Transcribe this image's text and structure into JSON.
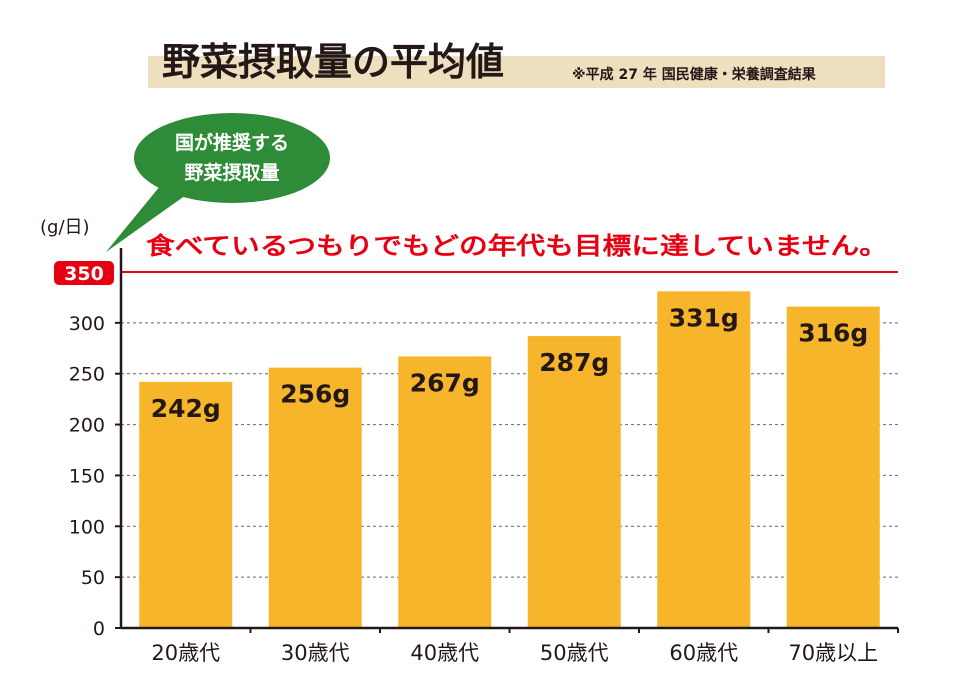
{
  "colors": {
    "bar": "#f7b52c",
    "axis": "#231815",
    "target": "#e60012",
    "bubble": "#2e8b37",
    "title_band": "#eedfbe",
    "text": "#231815",
    "grid": "#666666"
  },
  "chart_data": {
    "type": "bar",
    "title": "野菜摂取量の平均値",
    "source": "※平成 27 年 国民健康・栄養調査結果",
    "ylabel": "(g/日)",
    "ylim": [
      0,
      350
    ],
    "yticks": [
      "0",
      "50",
      "100",
      "150",
      "200",
      "250",
      "300"
    ],
    "target": {
      "label": "350",
      "value": 350
    },
    "bubble_lines": [
      "国が推奨する",
      "野菜摂取量"
    ],
    "annotation": "食べているつもりでもどの年代も目標に達していません。",
    "categories": [
      "20歳代",
      "30歳代",
      "40歳代",
      "50歳代",
      "60歳代",
      "70歳以上"
    ],
    "values": [
      242,
      256,
      267,
      287,
      331,
      316
    ],
    "value_labels": [
      "242g",
      "256g",
      "267g",
      "287g",
      "331g",
      "316g"
    ],
    "grid": true,
    "legend": "none"
  }
}
